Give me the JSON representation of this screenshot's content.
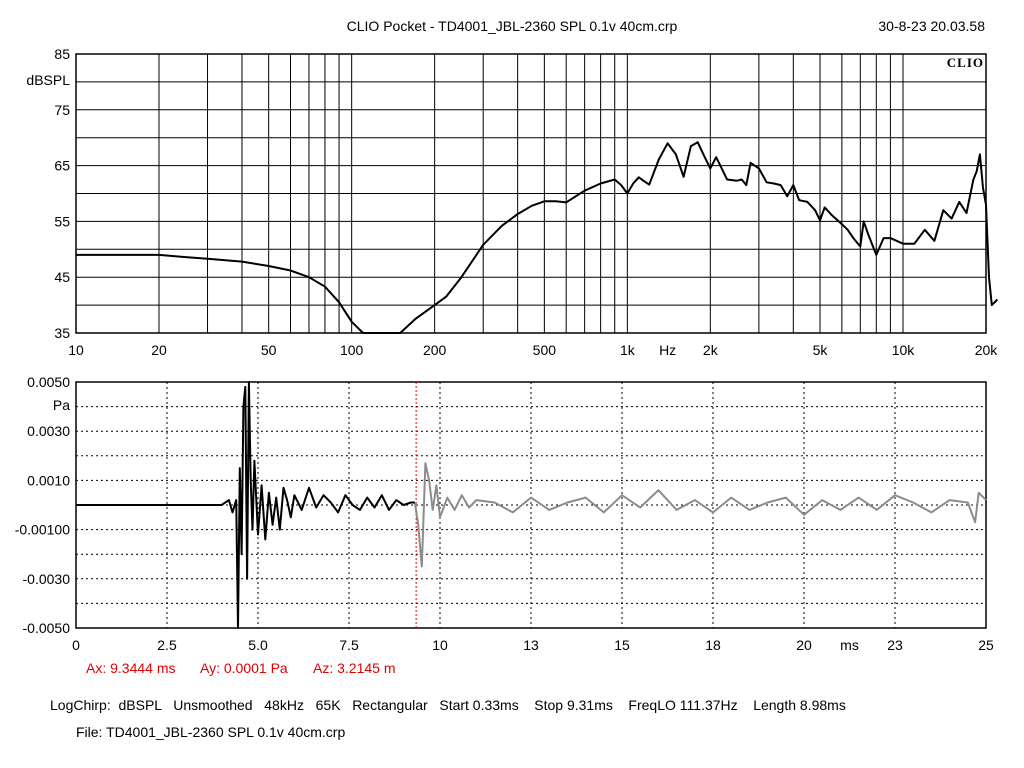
{
  "header": {
    "title": "CLIO Pocket - TD4001_JBL-2360 SPL 0.1v 40cm.crp",
    "datetime": "30-8-23 20.03.58",
    "logo": "CLIO"
  },
  "cursor_readout": {
    "ax": "Ax: 9.3444 ms",
    "ay": "Ay: 0.0001 Pa",
    "az": "Az: 3.2145 m"
  },
  "settings_line": "LogChirp:  dBSPL   Unsmoothed   48kHz   65K   Rectangular   Start 0.33ms    Stop 9.31ms    FreqLO 111.37Hz    Length 8.98ms",
  "file_line": "File: TD4001_JBL-2360 SPL 0.1v 40cm.crp",
  "colors": {
    "curve": "#000000",
    "grid": "#000000",
    "cursor": "#e00000",
    "gated_out": "#8c8c8c"
  },
  "chart_data": [
    {
      "type": "line",
      "xscale": "log",
      "xlim": [
        10,
        20000
      ],
      "ylim": [
        35,
        85
      ],
      "ylabel": "dBSPL",
      "xlabel": "Hz",
      "yticks": [
        35,
        45,
        55,
        65,
        75,
        85
      ],
      "yticks_labels": [
        "35",
        "45",
        "55",
        "65",
        "75",
        "85"
      ],
      "ylabel_after": 85,
      "xtick_labels": [
        {
          "v": 10,
          "t": "10"
        },
        {
          "v": 20,
          "t": "20"
        },
        {
          "v": 50,
          "t": "50"
        },
        {
          "v": 100,
          "t": "100"
        },
        {
          "v": 200,
          "t": "200"
        },
        {
          "v": 500,
          "t": "500"
        },
        {
          "v": 1000,
          "t": "1k"
        },
        {
          "v": 2000,
          "t": "2k"
        },
        {
          "v": 5000,
          "t": "5k"
        },
        {
          "v": 10000,
          "t": "10k"
        },
        {
          "v": 20000,
          "t": "20k"
        }
      ],
      "unit_label_at": 1400,
      "grid": true,
      "series": [
        {
          "x": [
            10,
            15,
            20,
            25,
            30,
            40,
            50,
            60,
            70,
            80,
            90,
            100,
            110,
            150,
            170,
            200,
            220,
            250,
            300,
            350,
            400,
            450,
            500,
            550,
            600,
            700,
            800,
            900,
            950,
            1000,
            1050,
            1100,
            1150,
            1200,
            1300,
            1400,
            1500,
            1600,
            1700,
            1800,
            1900,
            2000,
            2100,
            2200,
            2300,
            2500,
            2600,
            2700,
            2800,
            3000,
            3200,
            3400,
            3600,
            3800,
            4000,
            4200,
            4500,
            4800,
            5000,
            5200,
            5500,
            6000,
            6300,
            6600,
            7000,
            7200,
            7500,
            8000,
            8500,
            9000,
            10000,
            11000,
            12000,
            13000,
            14000,
            15000,
            16000,
            17000,
            18000,
            18500,
            19000,
            19500,
            20000,
            20500,
            21000,
            22000
          ],
          "y": [
            49,
            49,
            49,
            48.6,
            48.3,
            47.8,
            47,
            46.2,
            45,
            43.3,
            40.5,
            37,
            35,
            35,
            37.5,
            40,
            41.5,
            45,
            50.8,
            54.2,
            56.3,
            57.8,
            58.6,
            58.6,
            58.4,
            60.5,
            61.8,
            62.5,
            61.5,
            60,
            61.8,
            62.9,
            62.2,
            61.6,
            66.1,
            69,
            67,
            63,
            68.5,
            69.2,
            66.7,
            64.5,
            66.5,
            64.5,
            62.5,
            62.3,
            62.5,
            61.5,
            65.5,
            64.5,
            62,
            61.8,
            61.5,
            59.5,
            61.5,
            58.8,
            58.5,
            57,
            55.2,
            57.5,
            56.2,
            54.5,
            53.5,
            52,
            50.5,
            55,
            52.5,
            49,
            52,
            52,
            51,
            51,
            53.5,
            51.5,
            57,
            55.5,
            58.5,
            56.5,
            62.5,
            64,
            67,
            61,
            58,
            45,
            40,
            41
          ]
        }
      ]
    },
    {
      "type": "line",
      "xlim": [
        0,
        25
      ],
      "ylim": [
        -0.005,
        0.005
      ],
      "xlabel": "ms",
      "ylabel": "Pa",
      "ytick_labels": [
        {
          "v": 0.005,
          "t": "0.0050"
        },
        {
          "v": 0.003,
          "t": "0.0030"
        },
        {
          "v": 0.001,
          "t": "0.0010"
        },
        {
          "v": -0.001,
          "t": "-0.00100"
        },
        {
          "v": -0.003,
          "t": "-0.0030"
        },
        {
          "v": -0.005,
          "t": "-0.0050"
        }
      ],
      "ylabel_after": 0.005,
      "xtick_labels": [
        {
          "v": 0,
          "t": "0"
        },
        {
          "v": 2.5,
          "t": "2.5"
        },
        {
          "v": 5.0,
          "t": "5.0"
        },
        {
          "v": 7.5,
          "t": "7.5"
        },
        {
          "v": 10,
          "t": "10"
        },
        {
          "v": 12.5,
          "t": "13"
        },
        {
          "v": 15,
          "t": "15"
        },
        {
          "v": 17.5,
          "t": "18"
        },
        {
          "v": 20,
          "t": "20"
        },
        {
          "v": 22.5,
          "t": "23"
        },
        {
          "v": 25,
          "t": "25"
        }
      ],
      "unit_label_at": 21.25,
      "grid": true,
      "cursor_x": 9.3444,
      "series": [
        {
          "name": "",
          "x": [
            0.33,
            1.0,
            2.0,
            3.0,
            4.0,
            4.2,
            4.3,
            4.4,
            4.45,
            4.5,
            4.55,
            4.6,
            4.65,
            4.7,
            4.75,
            4.8,
            4.85,
            4.9,
            5.0,
            5.1,
            5.2,
            5.3,
            5.4,
            5.5,
            5.6,
            5.7,
            5.8,
            5.9,
            6.0,
            6.2,
            6.4,
            6.6,
            6.8,
            7.0,
            7.2,
            7.4,
            7.6,
            7.8,
            8.0,
            8.2,
            8.4,
            8.6,
            8.8,
            9.0,
            9.2,
            9.31
          ],
          "y": [
            0.0,
            0.0,
            0.0,
            0.0,
            0.0,
            0.0002,
            -0.0003,
            0.0002,
            -0.005,
            0.0015,
            -0.002,
            0.004,
            0.0048,
            -0.003,
            0.005,
            0.001,
            -0.001,
            0.0018,
            -0.0012,
            0.0008,
            -0.0014,
            0.0005,
            -0.0008,
            0.0003,
            -0.001,
            0.0007,
            0.0002,
            -0.0005,
            0.0004,
            -0.0002,
            0.0007,
            -0.0001,
            0.0004,
            0.0001,
            -0.0003,
            0.0004,
            0.0,
            -0.0002,
            0.0003,
            -0.0001,
            0.0004,
            -0.0002,
            0.0002,
            0.0,
            0.0001,
            0.0001
          ]
        },
        {
          "name": "",
          "x": [
            9.31,
            9.4,
            9.5,
            9.6,
            9.7,
            9.8,
            9.9,
            10.0,
            10.2,
            10.4,
            10.6,
            10.8,
            11.0,
            11.5,
            12.0,
            12.5,
            13.0,
            13.5,
            14.0,
            14.5,
            15.0,
            15.5,
            16.0,
            16.5,
            17.0,
            17.5,
            18.0,
            18.5,
            19.0,
            19.5,
            20.0,
            20.5,
            21.0,
            21.5,
            22.0,
            22.5,
            23.0,
            23.5,
            24.0,
            24.5,
            24.7,
            24.8,
            25.0
          ],
          "y": [
            0.0001,
            -0.0008,
            -0.0025,
            0.0017,
            0.001,
            -0.0002,
            0.0008,
            -0.0005,
            0.0003,
            -0.0002,
            0.0004,
            -0.0001,
            0.0002,
            0.0001,
            -0.0003,
            0.0003,
            -0.0002,
            0.0001,
            0.0003,
            -0.0003,
            0.0004,
            -0.0001,
            0.0006,
            -0.0002,
            0.0002,
            -0.0003,
            0.0003,
            -0.0002,
            0.0001,
            0.0003,
            -0.0004,
            0.0002,
            -0.0002,
            0.0003,
            -0.0002,
            0.0004,
            0.0001,
            -0.0003,
            0.0002,
            0.0001,
            -0.0007,
            0.0005,
            0.0002
          ]
        }
      ]
    }
  ]
}
